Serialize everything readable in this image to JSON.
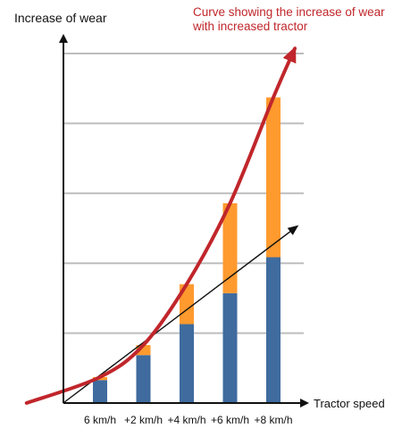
{
  "chart_data": {
    "type": "bar",
    "stacked": true,
    "ylabel": "Increase of wear",
    "xlabel": "Tractor speed",
    "categories": [
      "6 km/h",
      "+2 km/h",
      "+4 km/h",
      "+6 km/h",
      "+8 km/h"
    ],
    "series": [
      {
        "values": [
          2.3,
          4.8,
          7.9,
          11.0,
          14.6
        ]
      },
      {
        "values": [
          0.3,
          1.0,
          4.0,
          9.0,
          16.0
        ]
      }
    ],
    "ylim": [
      0,
      35
    ],
    "grid": true,
    "trend_line": {
      "from": [
        0,
        0
      ],
      "to": [
        5.4,
        17.7
      ]
    },
    "curve": {
      "values": [
        0,
        2.6,
        5.8,
        11.9,
        20.0,
        30.6,
        35.5
      ]
    },
    "annotation": "Curve showing the increase of wear with increased tractor",
    "colors": {
      "base": "#3f6b9e",
      "increase": "#ff9a2e",
      "curve": "#c0262b",
      "grid": "#bdbdbd",
      "axis": "#111111"
    }
  }
}
